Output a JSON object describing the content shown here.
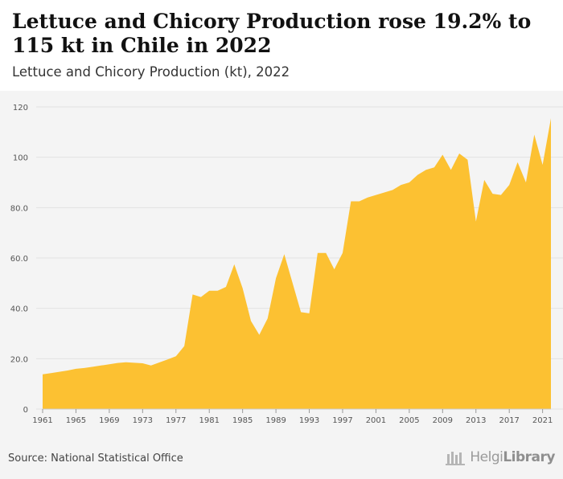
{
  "header": {
    "title": "Lettuce and Chicory Production rose 19.2% to 115 kt in Chile in 2022",
    "subtitle": "Lettuce and Chicory Production (kt), 2022"
  },
  "footer": {
    "source": "Source: National Statistical Office",
    "brand_light": "Helgi",
    "brand_bold": "Library"
  },
  "colors": {
    "fill": "#fcc132",
    "background": "#f4f4f4",
    "grid": "#e2e2e2"
  },
  "chart_data": {
    "type": "area",
    "title": "Lettuce and Chicory Production rose 19.2% to 115 kt in Chile in 2022",
    "subtitle": "Lettuce and Chicory Production (kt), 2022",
    "xlabel": "",
    "ylabel": "",
    "ylim": [
      0,
      120
    ],
    "xlim": [
      1961,
      2022
    ],
    "yticks": [
      0,
      20,
      40,
      60,
      80,
      100,
      120
    ],
    "ytick_labels": [
      "0",
      "20.0",
      "40.0",
      "60.0",
      "80.0",
      "100",
      "120"
    ],
    "xticks": [
      1961,
      1965,
      1969,
      1973,
      1977,
      1981,
      1985,
      1989,
      1993,
      1997,
      2001,
      2005,
      2009,
      2013,
      2017,
      2021
    ],
    "grid": true,
    "legend": "none",
    "x": [
      1961,
      1962,
      1963,
      1964,
      1965,
      1966,
      1967,
      1968,
      1969,
      1970,
      1971,
      1972,
      1973,
      1974,
      1975,
      1976,
      1977,
      1978,
      1979,
      1980,
      1981,
      1982,
      1983,
      1984,
      1985,
      1986,
      1987,
      1988,
      1989,
      1990,
      1991,
      1992,
      1993,
      1994,
      1995,
      1996,
      1997,
      1998,
      1999,
      2000,
      2001,
      2002,
      2003,
      2004,
      2005,
      2006,
      2007,
      2008,
      2009,
      2010,
      2011,
      2012,
      2013,
      2014,
      2015,
      2016,
      2017,
      2018,
      2019,
      2020,
      2021,
      2022
    ],
    "series": [
      {
        "values": [
          13.8,
          14.3,
          14.8,
          15.3,
          16.0,
          16.3,
          16.8,
          17.3,
          17.8,
          18.3,
          18.6,
          18.4,
          18.2,
          17.3,
          18.5,
          19.7,
          21.0,
          25.0,
          45.5,
          44.5,
          47.0,
          47.0,
          48.5,
          57.5,
          48.0,
          35.0,
          29.5,
          36.0,
          52.0,
          61.5,
          50.0,
          38.5,
          38.0,
          62.0,
          62.0,
          55.5,
          62.0,
          82.5,
          82.5,
          84.0,
          85.0,
          86.0,
          87.0,
          89.0,
          90.0,
          93.0,
          95.0,
          96.0,
          101.0,
          95.0,
          101.5,
          99.0,
          74.5,
          91.0,
          85.5,
          85.0,
          89.0,
          98.0,
          90.0,
          109.0,
          97.0,
          115.5
        ]
      }
    ]
  }
}
